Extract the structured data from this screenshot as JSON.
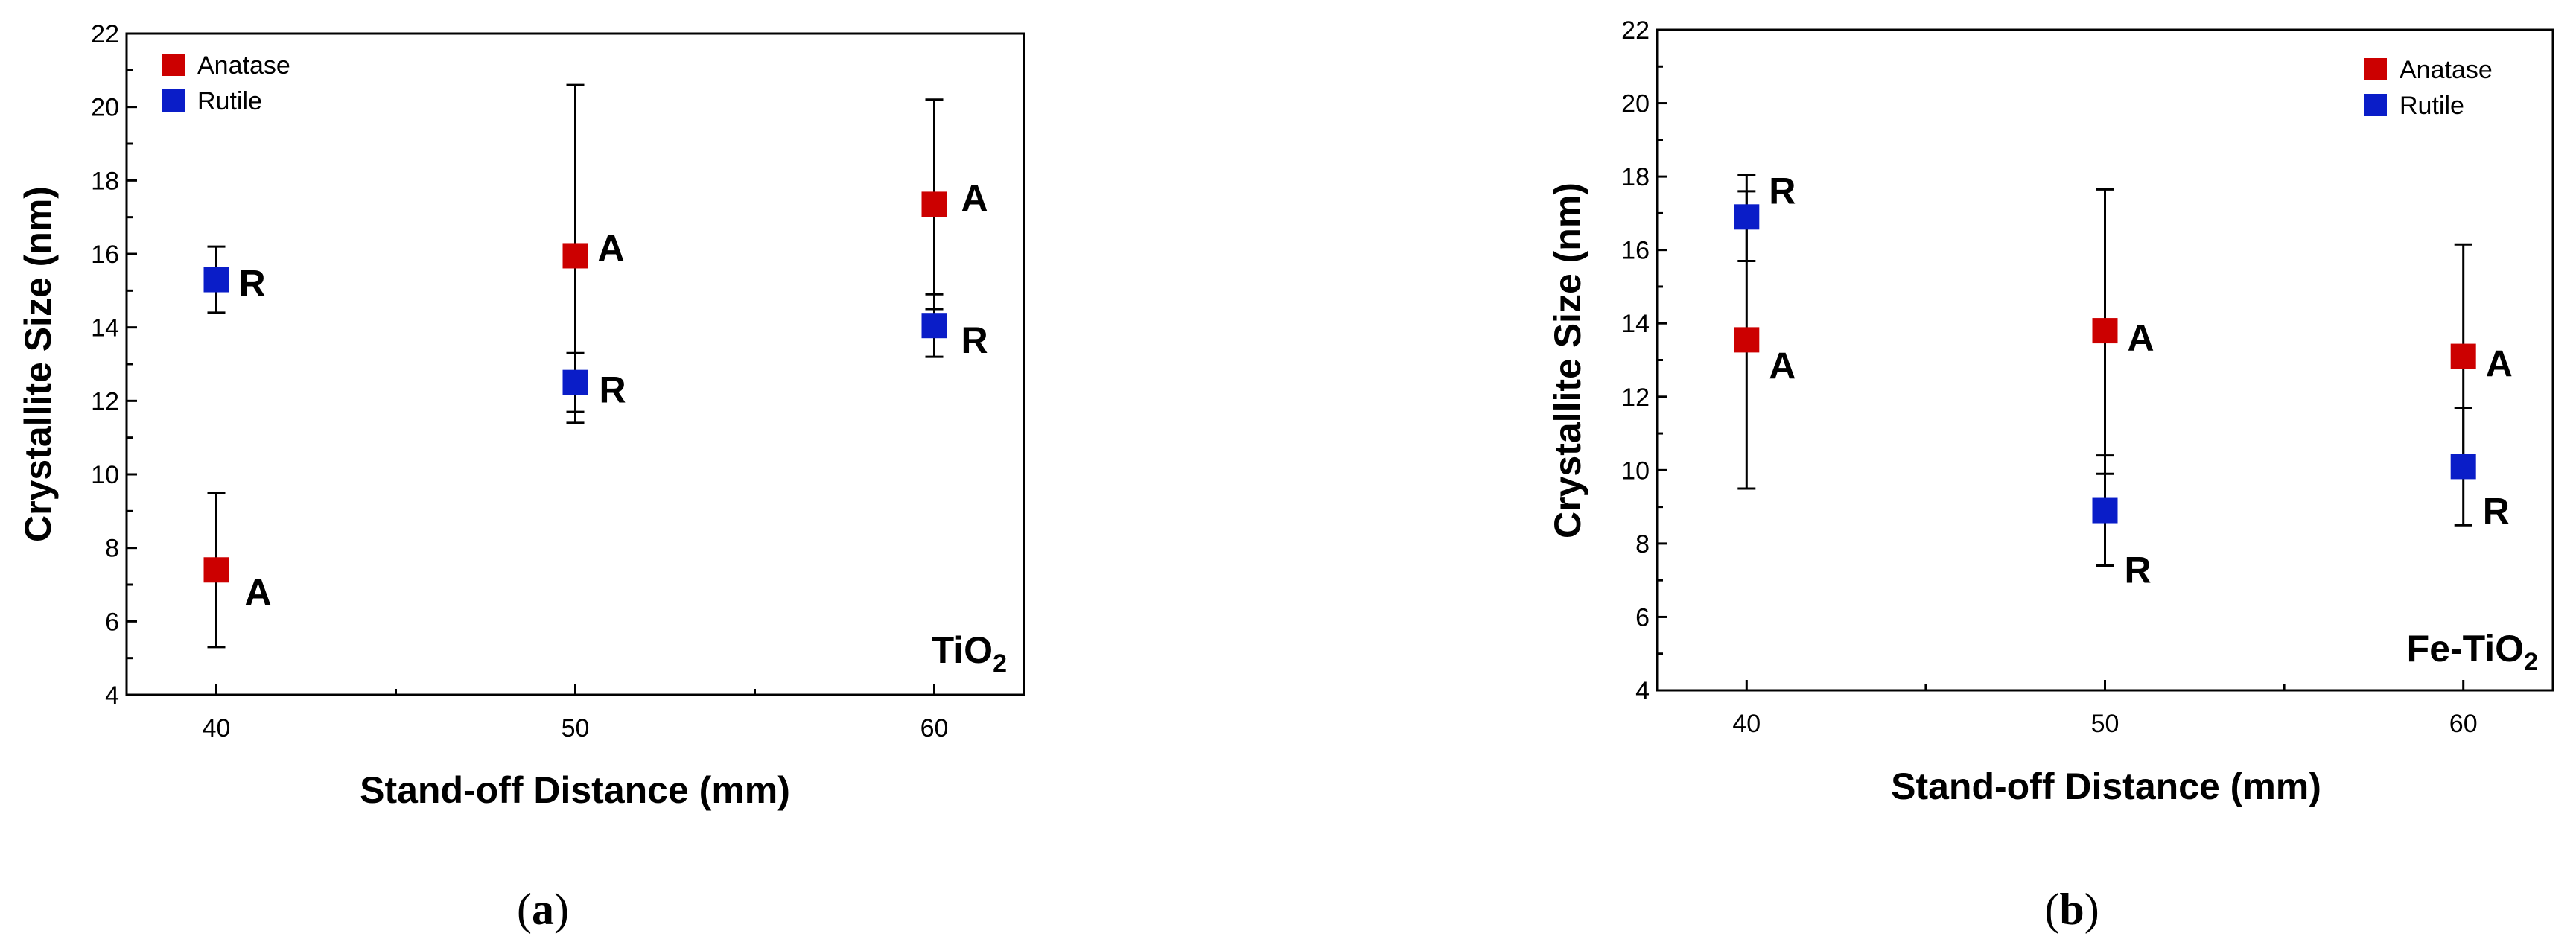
{
  "chart_data": [
    {
      "panel": "(a)",
      "caption": {
        "open": "(",
        "letter": "a",
        "close": ")"
      },
      "material_label": {
        "main": "TiO",
        "sub": "2"
      },
      "type": "scatter",
      "xlabel": "Stand-off Distance (mm)",
      "ylabel": "Crystallite Size (nm)",
      "x_ticks": [
        40,
        50,
        60
      ],
      "xlim": [
        37.5,
        62.5
      ],
      "ylim": [
        4,
        22
      ],
      "y_ticks": [
        4,
        6,
        8,
        10,
        12,
        14,
        16,
        18,
        20,
        22
      ],
      "legend": {
        "position": "top-left",
        "entries": [
          "Anatase",
          "Rutile"
        ]
      },
      "series": [
        {
          "name": "Anatase",
          "color": "#cc0000",
          "marker": "square",
          "point_label": "A",
          "points": [
            {
              "x": 40,
              "y": 7.4,
              "err_low": 5.3,
              "err_high": 9.5
            },
            {
              "x": 50,
              "y": 15.95,
              "err_low": 11.4,
              "err_high": 20.6
            },
            {
              "x": 60,
              "y": 17.35,
              "err_low": 14.5,
              "err_high": 20.2
            }
          ]
        },
        {
          "name": "Rutile",
          "color": "#0a1dc8",
          "marker": "square",
          "point_label": "R",
          "points": [
            {
              "x": 40,
              "y": 15.3,
              "err_low": 14.4,
              "err_high": 16.2
            },
            {
              "x": 50,
              "y": 12.5,
              "err_low": 11.7,
              "err_high": 13.3
            },
            {
              "x": 60,
              "y": 14.05,
              "err_low": 13.2,
              "err_high": 14.9
            }
          ]
        }
      ]
    },
    {
      "panel": "(b)",
      "caption": {
        "open": "(",
        "letter": "b",
        "close": ")"
      },
      "material_label": {
        "main": "Fe-TiO",
        "sub": "2"
      },
      "type": "scatter",
      "xlabel": "Stand-off Distance (mm)",
      "ylabel": "Crystallite Size (nm)",
      "x_ticks": [
        40,
        50,
        60
      ],
      "xlim": [
        37.5,
        62.5
      ],
      "ylim": [
        4,
        22
      ],
      "y_ticks": [
        4,
        6,
        8,
        10,
        12,
        14,
        16,
        18,
        20,
        22
      ],
      "legend": {
        "position": "top-right",
        "entries": [
          "Anatase",
          "Rutile"
        ]
      },
      "series": [
        {
          "name": "Anatase",
          "color": "#cc0000",
          "marker": "square",
          "point_label": "A",
          "points": [
            {
              "x": 40,
              "y": 13.55,
              "err_low": 9.5,
              "err_high": 17.6
            },
            {
              "x": 50,
              "y": 13.8,
              "err_low": 9.9,
              "err_high": 17.65
            },
            {
              "x": 60,
              "y": 13.1,
              "err_low": 10.1,
              "err_high": 16.15
            }
          ]
        },
        {
          "name": "Rutile",
          "color": "#0a1dc8",
          "marker": "square",
          "point_label": "R",
          "points": [
            {
              "x": 40,
              "y": 16.9,
              "err_low": 15.7,
              "err_high": 18.05
            },
            {
              "x": 50,
              "y": 8.9,
              "err_low": 7.4,
              "err_high": 10.4
            },
            {
              "x": 60,
              "y": 10.1,
              "err_low": 8.5,
              "err_high": 11.7
            }
          ]
        }
      ]
    }
  ]
}
